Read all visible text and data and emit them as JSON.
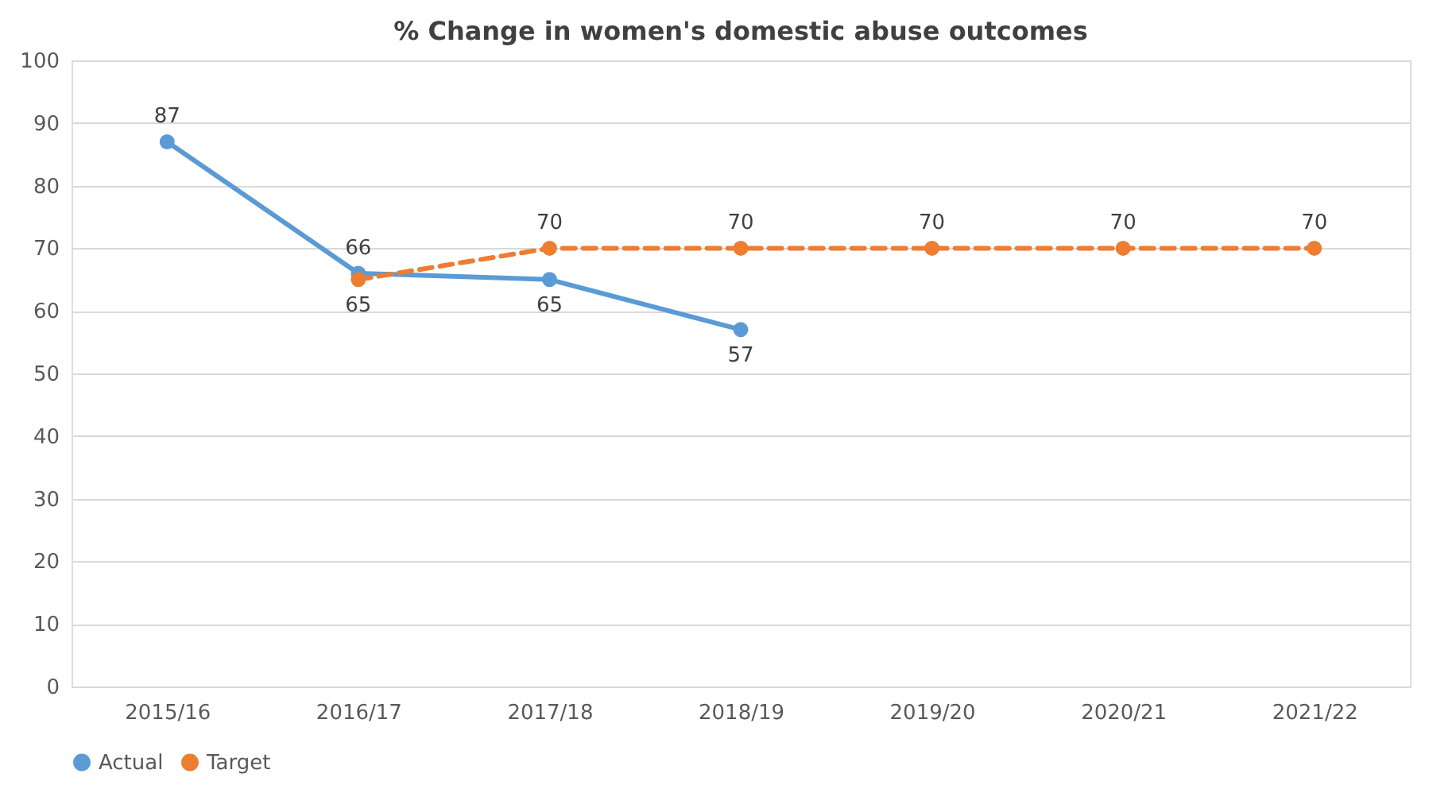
{
  "chart_data": {
    "type": "line",
    "title": "% Change in women's domestic abuse outcomes",
    "categories": [
      "2015/16",
      "2016/17",
      "2017/18",
      "2018/19",
      "2019/20",
      "2020/21",
      "2021/22"
    ],
    "series": [
      {
        "name": "Actual",
        "color": "#5b9bd5",
        "line_style": "solid",
        "values": [
          87,
          66,
          65,
          57,
          null,
          null,
          null
        ]
      },
      {
        "name": "Target",
        "color": "#ed7d31",
        "line_style": "dashed",
        "values": [
          null,
          65,
          70,
          70,
          70,
          70,
          70
        ]
      }
    ],
    "ylim": [
      0,
      100
    ],
    "yticks": [
      0,
      10,
      20,
      30,
      40,
      50,
      60,
      70,
      80,
      90,
      100
    ],
    "grid": "y",
    "legend": "bottom",
    "marker": "circle",
    "data_labels": true
  }
}
